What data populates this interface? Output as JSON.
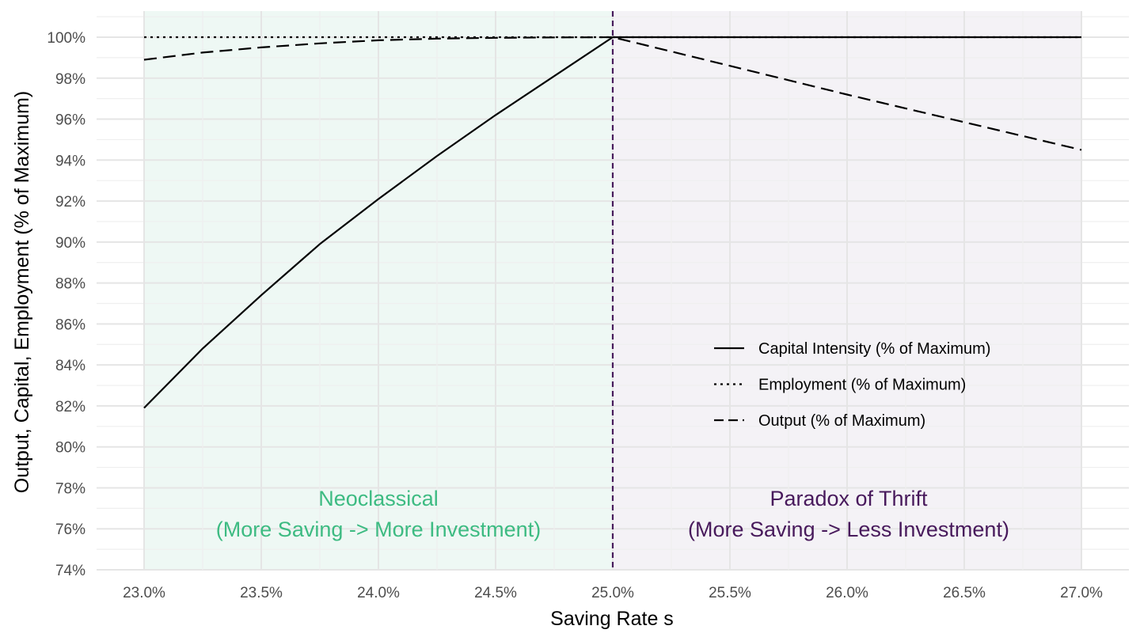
{
  "chart_data": {
    "type": "line",
    "xlabel": "Saving Rate s",
    "ylabel": "Output, Capital, Employment (% of Maximum)",
    "xlim": [
      0.229,
      0.272
    ],
    "ylim": [
      74.0,
      101.2
    ],
    "x_ticks": [
      0.23,
      0.235,
      0.24,
      0.245,
      0.25,
      0.255,
      0.26,
      0.265,
      0.27
    ],
    "x_tick_labels": [
      "23.0%",
      "23.5%",
      "24.0%",
      "24.5%",
      "25.0%",
      "25.5%",
      "26.0%",
      "26.5%",
      "27.0%"
    ],
    "y_ticks": [
      74,
      76,
      78,
      80,
      82,
      84,
      86,
      88,
      90,
      92,
      94,
      96,
      98,
      100
    ],
    "y_tick_labels": [
      "74%",
      "76%",
      "78%",
      "80%",
      "82%",
      "84%",
      "86%",
      "88%",
      "90%",
      "92%",
      "94%",
      "96%",
      "98%",
      "100%"
    ],
    "grid": true,
    "legend_position": "right",
    "regions": [
      {
        "x_from": 0.23,
        "x_to": 0.25,
        "color": "#eef8f4",
        "line1": "Neoclassical",
        "line2": "(More Saving -> More Investment)",
        "text_color": "#3dbb82"
      },
      {
        "x_from": 0.25,
        "x_to": 0.27,
        "color": "#f4f2f6",
        "line1": "Paradox of Thrift",
        "line2": "(More Saving -> Less Investment)",
        "text_color": "#481a5c"
      }
    ],
    "vline": {
      "x": 0.25,
      "color": "#481a5c"
    },
    "series": [
      {
        "name": "Capital Intensity (% of Maximum)",
        "dash": "solid",
        "x": [
          0.23,
          0.2325,
          0.235,
          0.2375,
          0.24,
          0.2425,
          0.245,
          0.2475,
          0.25,
          0.27
        ],
        "y": [
          81.9,
          84.8,
          87.4,
          89.9,
          92.1,
          94.2,
          96.2,
          98.1,
          100.0,
          100.0
        ]
      },
      {
        "name": "Employment (% of Maximum)",
        "dash": "dotted",
        "x": [
          0.23,
          0.25,
          0.27
        ],
        "y": [
          100.0,
          100.0,
          100.0
        ]
      },
      {
        "name": "Output (% of Maximum)",
        "dash": "dashed",
        "x": [
          0.23,
          0.2325,
          0.235,
          0.2375,
          0.24,
          0.2425,
          0.245,
          0.2475,
          0.25,
          0.255,
          0.26,
          0.265,
          0.27
        ],
        "y": [
          98.9,
          99.25,
          99.5,
          99.7,
          99.85,
          99.93,
          99.97,
          99.99,
          100.0,
          98.6,
          97.2,
          95.85,
          94.5
        ]
      }
    ]
  }
}
